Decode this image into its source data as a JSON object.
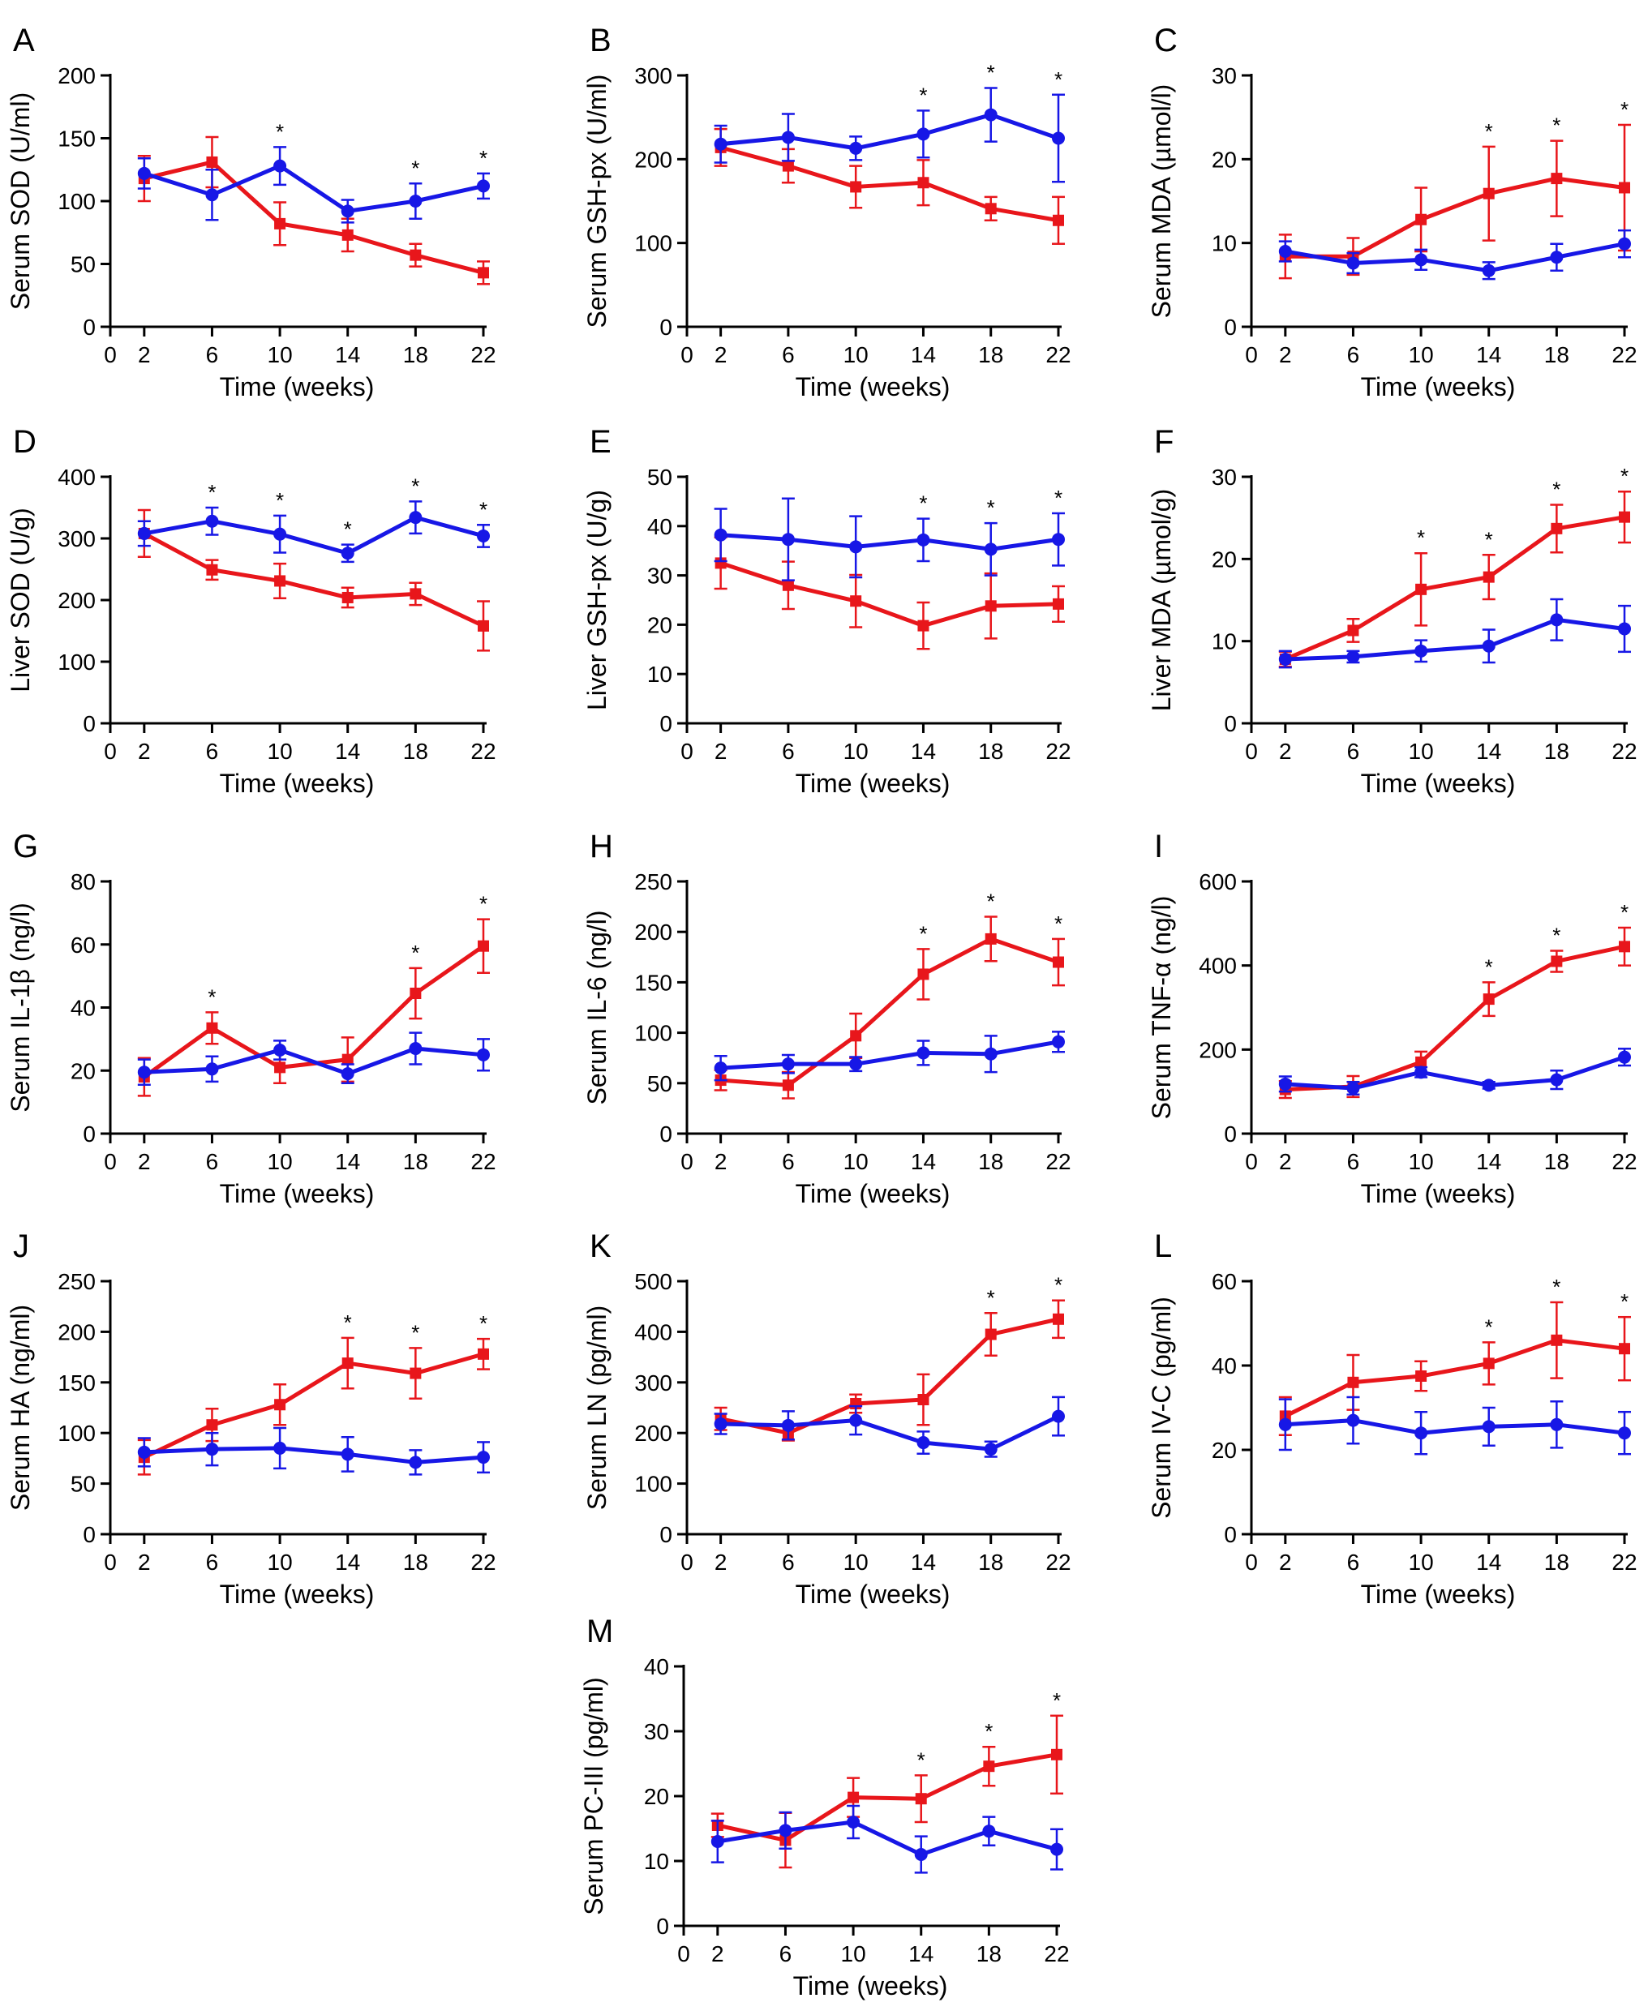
{
  "figure": {
    "colors": {
      "red": "#e8161b",
      "blue": "#1717e6",
      "axis": "#000000"
    },
    "series_names": [
      "red-series",
      "blue-series"
    ]
  },
  "chart_data": [
    {
      "panel": "A",
      "type": "line",
      "title": "",
      "xlabel": "Time (weeks)",
      "ylabel": "Serum SOD (U/ml)",
      "xticks": [
        0,
        2,
        6,
        10,
        14,
        18,
        22
      ],
      "yticks": [
        0,
        50,
        100,
        150,
        200
      ],
      "ylim": [
        0,
        200
      ],
      "series": [
        {
          "name": "red",
          "x": [
            2,
            6,
            10,
            14,
            18,
            22
          ],
          "y": [
            118,
            131,
            82,
            73,
            57,
            43
          ],
          "err": [
            18,
            20,
            17,
            13,
            9,
            9
          ]
        },
        {
          "name": "blue",
          "x": [
            2,
            6,
            10,
            14,
            18,
            22
          ],
          "y": [
            122,
            105,
            128,
            92,
            100,
            112
          ],
          "err": [
            12,
            20,
            15,
            9,
            14,
            10
          ]
        }
      ],
      "significance": [
        10,
        18,
        22
      ],
      "sig_label": "*"
    },
    {
      "panel": "B",
      "type": "line",
      "title": "",
      "xlabel": "Time (weeks)",
      "ylabel": "Serum GSH-px (U/ml)",
      "xticks": [
        0,
        2,
        6,
        10,
        14,
        18,
        22
      ],
      "yticks": [
        0,
        100,
        200,
        300
      ],
      "ylim": [
        0,
        300
      ],
      "series": [
        {
          "name": "red",
          "x": [
            2,
            6,
            10,
            14,
            18,
            22
          ],
          "y": [
            214,
            192,
            167,
            172,
            141,
            127
          ],
          "err": [
            22,
            20,
            25,
            27,
            14,
            28
          ]
        },
        {
          "name": "blue",
          "x": [
            2,
            6,
            10,
            14,
            18,
            22
          ],
          "y": [
            218,
            226,
            213,
            230,
            253,
            225
          ],
          "err": [
            22,
            28,
            14,
            28,
            32,
            52
          ]
        }
      ],
      "significance": [
        14,
        18,
        22
      ],
      "sig_label": "*"
    },
    {
      "panel": "C",
      "type": "line",
      "title": "",
      "xlabel": "Time (weeks)",
      "ylabel": "Serum MDA (µmol/l)",
      "xticks": [
        0,
        2,
        6,
        10,
        14,
        18,
        22
      ],
      "yticks": [
        0,
        10,
        20,
        30
      ],
      "ylim": [
        0,
        30
      ],
      "series": [
        {
          "name": "red",
          "x": [
            2,
            6,
            10,
            14,
            18,
            22
          ],
          "y": [
            8.4,
            8.4,
            12.8,
            15.9,
            17.7,
            16.6
          ],
          "err": [
            2.6,
            2.2,
            3.8,
            5.6,
            4.5,
            7.5
          ]
        },
        {
          "name": "blue",
          "x": [
            2,
            6,
            10,
            14,
            18,
            22
          ],
          "y": [
            9.0,
            7.6,
            8.0,
            6.7,
            8.3,
            9.9
          ],
          "err": [
            1.2,
            1.2,
            1.2,
            1.0,
            1.6,
            1.6
          ]
        }
      ],
      "significance": [
        14,
        18,
        22
      ],
      "sig_label": "*"
    },
    {
      "panel": "D",
      "type": "line",
      "title": "",
      "xlabel": "Time (weeks)",
      "ylabel": "Liver SOD (U/g)",
      "xticks": [
        0,
        2,
        6,
        10,
        14,
        18,
        22
      ],
      "yticks": [
        0,
        100,
        200,
        300,
        400
      ],
      "ylim": [
        0,
        400
      ],
      "series": [
        {
          "name": "red",
          "x": [
            2,
            6,
            10,
            14,
            18,
            22
          ],
          "y": [
            308,
            249,
            231,
            204,
            210,
            158
          ],
          "err": [
            38,
            16,
            28,
            16,
            18,
            40
          ]
        },
        {
          "name": "blue",
          "x": [
            2,
            6,
            10,
            14,
            18,
            22
          ],
          "y": [
            308,
            328,
            307,
            276,
            334,
            304
          ],
          "err": [
            20,
            22,
            30,
            14,
            26,
            18
          ]
        }
      ],
      "significance": [
        6,
        10,
        14,
        18,
        22
      ],
      "sig_label": "*"
    },
    {
      "panel": "E",
      "type": "line",
      "title": "",
      "xlabel": "Time (weeks)",
      "ylabel": "Liver GSH-px (U/g)",
      "xticks": [
        0,
        2,
        6,
        10,
        14,
        18,
        22
      ],
      "yticks": [
        0,
        10,
        20,
        30,
        40,
        50
      ],
      "ylim": [
        0,
        50
      ],
      "series": [
        {
          "name": "red",
          "x": [
            2,
            6,
            10,
            14,
            18,
            22
          ],
          "y": [
            32.5,
            28.0,
            24.8,
            19.8,
            23.8,
            24.2
          ],
          "err": [
            5.2,
            4.8,
            5.3,
            4.7,
            6.6,
            3.6
          ]
        },
        {
          "name": "blue",
          "x": [
            2,
            6,
            10,
            14,
            18,
            22
          ],
          "y": [
            38.2,
            37.3,
            35.8,
            37.2,
            35.3,
            37.3
          ],
          "err": [
            5.3,
            8.3,
            6.2,
            4.3,
            5.3,
            5.3
          ]
        }
      ],
      "significance": [
        14,
        18,
        22
      ],
      "sig_label": "*"
    },
    {
      "panel": "F",
      "type": "line",
      "title": "",
      "xlabel": "Time (weeks)",
      "ylabel": "Liver MDA (µmol/g)",
      "xticks": [
        0,
        2,
        6,
        10,
        14,
        18,
        22
      ],
      "yticks": [
        0,
        10,
        20,
        30
      ],
      "ylim": [
        0,
        30
      ],
      "series": [
        {
          "name": "red",
          "x": [
            2,
            6,
            10,
            14,
            18,
            22
          ],
          "y": [
            7.8,
            11.3,
            16.3,
            17.8,
            23.7,
            25.1
          ],
          "err": [
            0.9,
            1.4,
            4.4,
            2.7,
            2.9,
            3.1
          ]
        },
        {
          "name": "blue",
          "x": [
            2,
            6,
            10,
            14,
            18,
            22
          ],
          "y": [
            7.8,
            8.1,
            8.8,
            9.4,
            12.6,
            11.5
          ],
          "err": [
            1.0,
            0.7,
            1.3,
            2.0,
            2.5,
            2.8
          ]
        }
      ],
      "significance": [
        10,
        14,
        18,
        22
      ],
      "sig_label": "*"
    },
    {
      "panel": "G",
      "type": "line",
      "title": "",
      "xlabel": "Time (weeks)",
      "ylabel": "Serum IL-1β (ng/l)",
      "xticks": [
        0,
        2,
        6,
        10,
        14,
        18,
        22
      ],
      "yticks": [
        0,
        20,
        40,
        60,
        80
      ],
      "ylim": [
        0,
        80
      ],
      "series": [
        {
          "name": "red",
          "x": [
            2,
            6,
            10,
            14,
            18,
            22
          ],
          "y": [
            18,
            33.5,
            21,
            23.5,
            44.5,
            59.5
          ],
          "err": [
            6,
            5,
            5,
            7,
            8,
            8.5
          ]
        },
        {
          "name": "blue",
          "x": [
            2,
            6,
            10,
            14,
            18,
            22
          ],
          "y": [
            19.5,
            20.5,
            26.5,
            19,
            27,
            25
          ],
          "err": [
            4,
            4,
            3,
            3,
            5,
            5
          ]
        }
      ],
      "significance": [
        6,
        18,
        22
      ],
      "sig_label": "*"
    },
    {
      "panel": "H",
      "type": "line",
      "title": "",
      "xlabel": "Time (weeks)",
      "ylabel": "Serum IL-6 (ng/l)",
      "xticks": [
        0,
        2,
        6,
        10,
        14,
        18,
        22
      ],
      "yticks": [
        0,
        50,
        100,
        150,
        200,
        250
      ],
      "ylim": [
        0,
        250
      ],
      "series": [
        {
          "name": "red",
          "x": [
            2,
            6,
            10,
            14,
            18,
            22
          ],
          "y": [
            53,
            48,
            97,
            158,
            193,
            170
          ],
          "err": [
            10,
            13,
            22,
            25,
            22,
            23
          ]
        },
        {
          "name": "blue",
          "x": [
            2,
            6,
            10,
            14,
            18,
            22
          ],
          "y": [
            65,
            69,
            69,
            80,
            79,
            91
          ],
          "err": [
            12,
            9,
            7,
            12,
            18,
            10
          ]
        }
      ],
      "significance": [
        14,
        18,
        22
      ],
      "sig_label": "*"
    },
    {
      "panel": "I",
      "type": "line",
      "title": "",
      "xlabel": "Time (weeks)",
      "ylabel": "Serum TNF-α (ng/l)",
      "xticks": [
        0,
        2,
        6,
        10,
        14,
        18,
        22
      ],
      "yticks": [
        0,
        200,
        400,
        600
      ],
      "ylim": [
        0,
        600
      ],
      "series": [
        {
          "name": "red",
          "x": [
            2,
            6,
            10,
            14,
            18,
            22
          ],
          "y": [
            105,
            112,
            170,
            320,
            410,
            445
          ],
          "err": [
            20,
            25,
            25,
            40,
            25,
            45
          ]
        },
        {
          "name": "blue",
          "x": [
            2,
            6,
            10,
            14,
            18,
            22
          ],
          "y": [
            118,
            108,
            146,
            115,
            128,
            182
          ],
          "err": [
            18,
            15,
            12,
            8,
            22,
            20
          ]
        }
      ],
      "significance": [
        14,
        18,
        22
      ],
      "sig_label": "*"
    },
    {
      "panel": "J",
      "type": "line",
      "title": "",
      "xlabel": "Time (weeks)",
      "ylabel": "Serum HA (ng/ml)",
      "xticks": [
        0,
        2,
        6,
        10,
        14,
        18,
        22
      ],
      "yticks": [
        0,
        50,
        100,
        150,
        200,
        250
      ],
      "ylim": [
        0,
        250
      ],
      "series": [
        {
          "name": "red",
          "x": [
            2,
            6,
            10,
            14,
            18,
            22
          ],
          "y": [
            76,
            108,
            128,
            169,
            159,
            178
          ],
          "err": [
            17,
            16,
            20,
            25,
            25,
            15
          ]
        },
        {
          "name": "blue",
          "x": [
            2,
            6,
            10,
            14,
            18,
            22
          ],
          "y": [
            81,
            84,
            85,
            79,
            71,
            76
          ],
          "err": [
            14,
            16,
            20,
            17,
            12,
            15
          ]
        }
      ],
      "significance": [
        14,
        18,
        22
      ],
      "sig_label": "*"
    },
    {
      "panel": "K",
      "type": "line",
      "title": "",
      "xlabel": "Time (weeks)",
      "ylabel": "Serum LN (pg/ml)",
      "xticks": [
        0,
        2,
        6,
        10,
        14,
        18,
        22
      ],
      "yticks": [
        0,
        100,
        200,
        300,
        400,
        500
      ],
      "ylim": [
        0,
        500
      ],
      "series": [
        {
          "name": "red",
          "x": [
            2,
            6,
            10,
            14,
            18,
            22
          ],
          "y": [
            228,
            200,
            258,
            266,
            395,
            425
          ],
          "err": [
            22,
            15,
            18,
            50,
            42,
            37
          ]
        },
        {
          "name": "blue",
          "x": [
            2,
            6,
            10,
            14,
            18,
            22
          ],
          "y": [
            218,
            215,
            225,
            181,
            168,
            233
          ],
          "err": [
            20,
            28,
            28,
            22,
            15,
            38
          ]
        }
      ],
      "significance": [
        18,
        22
      ],
      "sig_label": "*"
    },
    {
      "panel": "L",
      "type": "line",
      "title": "",
      "xlabel": "Time (weeks)",
      "ylabel": "Serum IV-C (pg/ml)",
      "xticks": [
        0,
        2,
        6,
        10,
        14,
        18,
        22
      ],
      "yticks": [
        0,
        20,
        40,
        60
      ],
      "ylim": [
        0,
        60
      ],
      "series": [
        {
          "name": "red",
          "x": [
            2,
            6,
            10,
            14,
            18,
            22
          ],
          "y": [
            28,
            36,
            37.5,
            40.5,
            46,
            44
          ],
          "err": [
            4.5,
            6.5,
            3.5,
            5,
            9,
            7.5
          ]
        },
        {
          "name": "blue",
          "x": [
            2,
            6,
            10,
            14,
            18,
            22
          ],
          "y": [
            26,
            27,
            24,
            25.5,
            26,
            24
          ],
          "err": [
            6,
            5.5,
            5,
            4.5,
            5.5,
            5
          ]
        }
      ],
      "significance": [
        14,
        18,
        22
      ],
      "sig_label": "*"
    },
    {
      "panel": "M",
      "type": "line",
      "title": "",
      "xlabel": "Time (weeks)",
      "ylabel": "Serum PC-III (pg/ml)",
      "xticks": [
        0,
        2,
        6,
        10,
        14,
        18,
        22
      ],
      "yticks": [
        0,
        10,
        20,
        30,
        40
      ],
      "ylim": [
        0,
        40
      ],
      "series": [
        {
          "name": "red",
          "x": [
            2,
            6,
            10,
            14,
            18,
            22
          ],
          "y": [
            15.5,
            13.2,
            19.8,
            19.6,
            24.6,
            26.4
          ],
          "err": [
            1.8,
            4.2,
            3.0,
            3.6,
            3.0,
            6.0
          ]
        },
        {
          "name": "blue",
          "x": [
            2,
            6,
            10,
            14,
            18,
            22
          ],
          "y": [
            13,
            14.7,
            16,
            11,
            14.6,
            11.8
          ],
          "err": [
            3.2,
            2.8,
            2.5,
            2.8,
            2.2,
            3.1
          ]
        }
      ],
      "significance": [
        14,
        18,
        22
      ],
      "sig_label": "*"
    }
  ]
}
